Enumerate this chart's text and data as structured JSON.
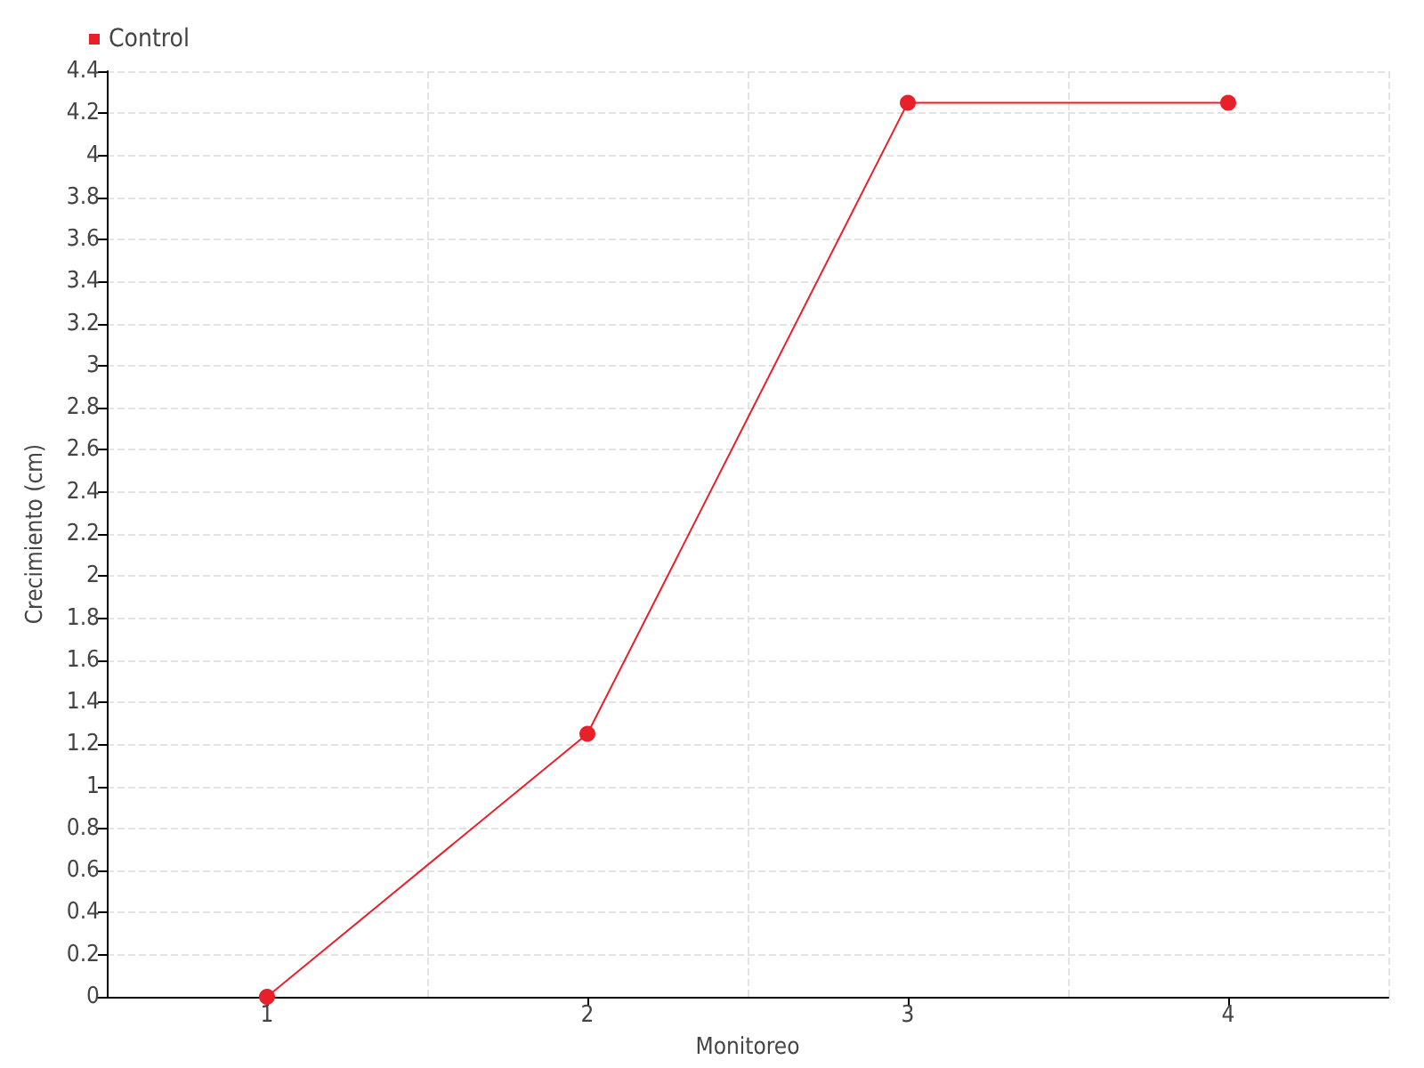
{
  "chart_data": {
    "type": "line",
    "xlabel": "Monitoreo",
    "ylabel": "Crecimiento (cm)",
    "categories": [
      "1",
      "2",
      "3",
      "4"
    ],
    "series": [
      {
        "name": "Control",
        "color": "#e8202a",
        "values": [
          0,
          1.25,
          4.25,
          4.25
        ]
      }
    ],
    "ylim": [
      0,
      4.4
    ],
    "yticks": [
      0,
      0.2,
      0.4,
      0.6,
      0.8,
      1,
      1.2,
      1.4,
      1.6,
      1.8,
      2,
      2.2,
      2.4,
      2.6,
      2.8,
      3,
      3.2,
      3.4,
      3.6,
      3.8,
      4,
      4.2,
      4.4
    ],
    "grid": true,
    "legend": "top left",
    "marker": "circle",
    "line_style": "solid"
  }
}
